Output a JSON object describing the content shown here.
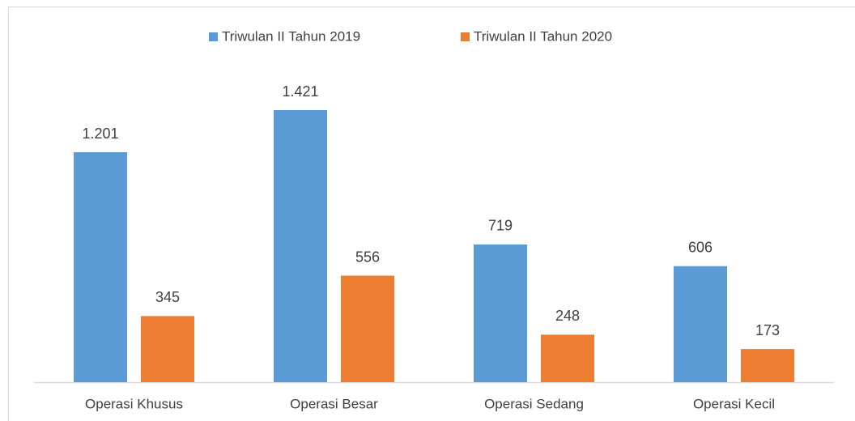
{
  "chart_data": {
    "type": "bar",
    "categories": [
      "Operasi Khusus",
      "Operasi Besar",
      "Operasi Sedang",
      "Operasi Kecil"
    ],
    "series": [
      {
        "name": "Triwulan II Tahun 2019",
        "color": "#5b9bd5",
        "values": [
          1201,
          1421,
          719,
          606
        ],
        "value_labels": [
          "1.201",
          "1.421",
          "719",
          "606"
        ]
      },
      {
        "name": "Triwulan II Tahun 2020",
        "color": "#ed7d31",
        "values": [
          345,
          556,
          248,
          173
        ],
        "value_labels": [
          "345",
          "556",
          "248",
          "173"
        ]
      }
    ],
    "legend": "top"
  }
}
